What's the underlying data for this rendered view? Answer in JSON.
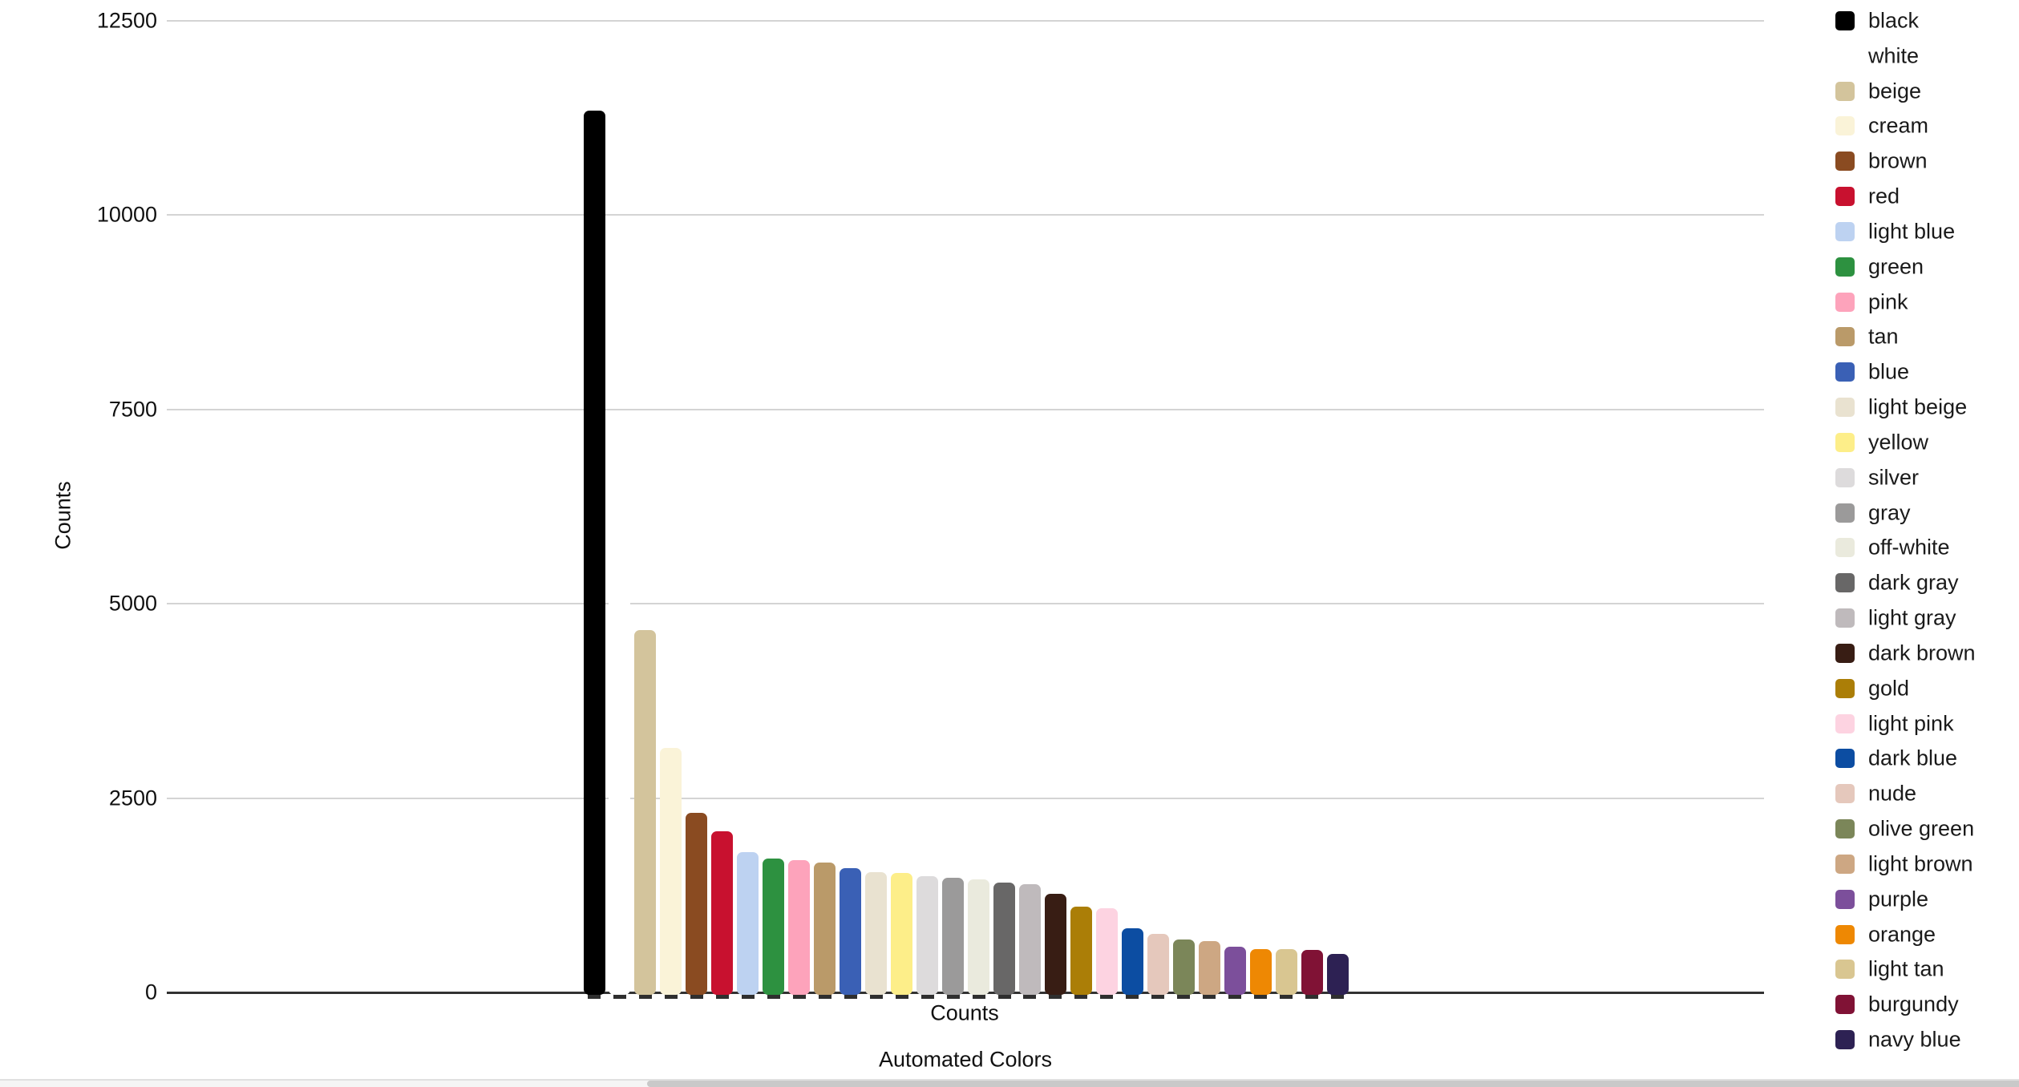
{
  "chart_data": {
    "type": "bar",
    "title": "",
    "xlabel": "Counts",
    "xlabel_secondary": "Automated Colors",
    "ylabel": "Counts",
    "ylim": [
      0,
      12500
    ],
    "yticks": [
      0,
      2500,
      5000,
      7500,
      10000,
      12500
    ],
    "grid": true,
    "legend_position": "right",
    "categories": [
      "black",
      "white",
      "beige",
      "cream",
      "brown",
      "red",
      "light blue",
      "green",
      "pink",
      "tan",
      "blue",
      "light beige",
      "yellow",
      "silver",
      "gray",
      "off-white",
      "dark gray",
      "light gray",
      "dark brown",
      "gold",
      "light pink",
      "dark blue",
      "nude",
      "olive green",
      "light brown",
      "purple",
      "orange",
      "light tan",
      "burgundy",
      "navy blue"
    ],
    "values": [
      11350,
      5600,
      4660,
      3150,
      2310,
      2075,
      1805,
      1725,
      1700,
      1670,
      1600,
      1550,
      1540,
      1495,
      1475,
      1455,
      1415,
      1390,
      1270,
      1105,
      1085,
      830,
      750,
      680,
      665,
      590,
      560,
      552,
      548,
      500
    ],
    "bar_colors": [
      "#000000",
      "#ffffff",
      "#d3c49c",
      "#faf3d8",
      "#8a4b21",
      "#c8112f",
      "#bdd2f1",
      "#2d9140",
      "#fda3bb",
      "#ba9a69",
      "#3a60b5",
      "#e9e2d0",
      "#fdee89",
      "#dddbdc",
      "#9b9a9a",
      "#eaeadd",
      "#686767",
      "#bfbabc",
      "#381d14",
      "#ab7e07",
      "#fdd3e1",
      "#0c4da2",
      "#e5c8bc",
      "#7b8659",
      "#cda783",
      "#7c4f9b",
      "#ee8803",
      "#d9c691",
      "#801235",
      "#2d2153"
    ]
  }
}
